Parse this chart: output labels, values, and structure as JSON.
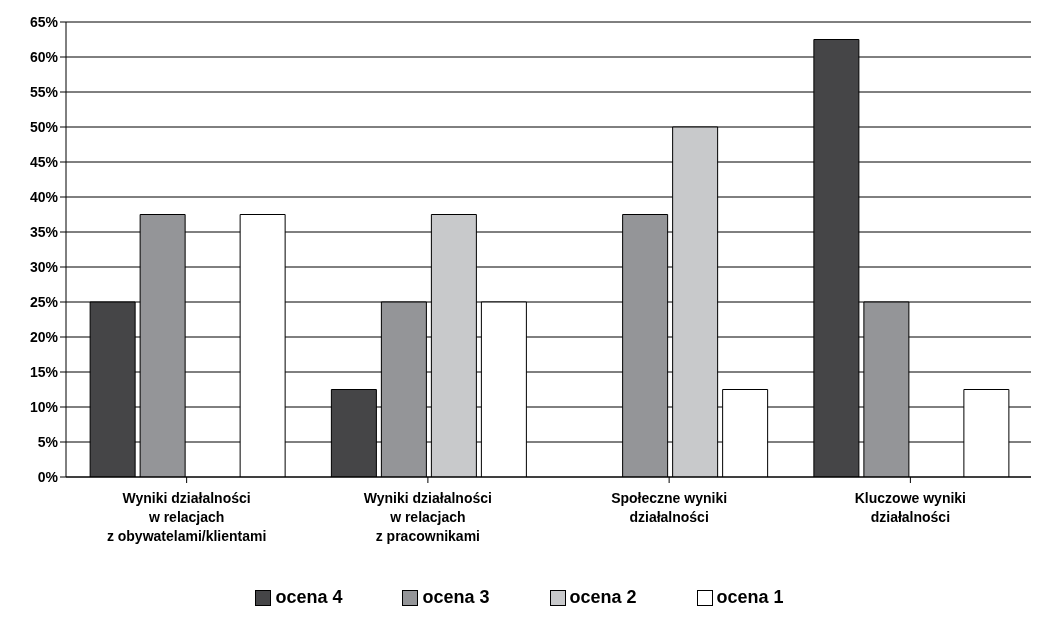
{
  "chart_data": {
    "type": "bar",
    "categories": [
      "Wyniki działalności\nw relacjach\nz obywatelami/klientami",
      "Wyniki działalności\nw relacjach\nz pracownikami",
      "Społeczne wyniki\ndziałalności",
      "Kluczowe wyniki\ndziałalności"
    ],
    "series": [
      {
        "name": "ocena 4",
        "color": "#454547",
        "values": [
          25,
          12.5,
          0,
          62.5
        ]
      },
      {
        "name": "ocena 3",
        "color": "#949598",
        "values": [
          37.5,
          25,
          37.5,
          25
        ]
      },
      {
        "name": "ocena 2",
        "color": "#c8c9cb",
        "values": [
          0,
          37.5,
          50,
          0
        ]
      },
      {
        "name": "ocena 1",
        "color": "#ffffff",
        "values": [
          37.5,
          25,
          12.5,
          12.5
        ]
      }
    ],
    "ylim": [
      0,
      65
    ],
    "yticks": [
      {
        "value": 0,
        "label": "0%"
      },
      {
        "value": 5,
        "label": "5%"
      },
      {
        "value": 10,
        "label": "10%"
      },
      {
        "value": 15,
        "label": "15%"
      },
      {
        "value": 20,
        "label": "20%"
      },
      {
        "value": 25,
        "label": "25%"
      },
      {
        "value": 30,
        "label": "30%"
      },
      {
        "value": 35,
        "label": "35%"
      },
      {
        "value": 40,
        "label": "40%"
      },
      {
        "value": 45,
        "label": "45%"
      },
      {
        "value": 50,
        "label": "50%"
      },
      {
        "value": 55,
        "label": "55%"
      },
      {
        "value": 60,
        "label": "60%"
      },
      {
        "value": 65,
        "label": "65%"
      }
    ],
    "grid": "y",
    "legend": "bottom"
  }
}
